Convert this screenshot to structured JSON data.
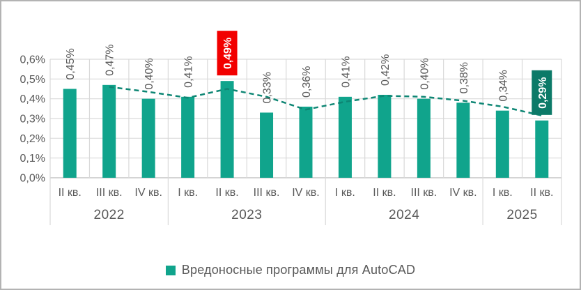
{
  "chart_data": {
    "type": "bar",
    "title": "",
    "legend": {
      "label": "Вредоносные программы для AutoCAD",
      "position": "bottom"
    },
    "y_axis": {
      "min": 0,
      "max": 0.6,
      "tick_step": 0.1,
      "grid": true,
      "ticks": [
        "0,0%",
        "0,1%",
        "0,2%",
        "0,3%",
        "0,4%",
        "0,5%",
        "0,6%"
      ]
    },
    "groups": [
      {
        "year": "2022",
        "quarters": [
          "II кв.",
          "III кв.",
          "IV кв."
        ]
      },
      {
        "year": "2023",
        "quarters": [
          "I кв.",
          "II кв.",
          "III кв.",
          "IV кв."
        ]
      },
      {
        "year": "2024",
        "quarters": [
          "I кв.",
          "II кв.",
          "III кв.",
          "IV кв."
        ]
      },
      {
        "year": "2025",
        "quarters": [
          "I кв.",
          "II кв."
        ]
      }
    ],
    "series": [
      {
        "name": "Вредоносные программы для AutoCAD",
        "values": [
          0.45,
          0.47,
          0.4,
          0.41,
          0.49,
          0.33,
          0.36,
          0.41,
          0.42,
          0.4,
          0.38,
          0.34,
          0.29
        ],
        "labels": [
          "0,45%",
          "0,47%",
          "0,40%",
          "0,41%",
          "0,49%",
          "0,33%",
          "0,36%",
          "0,41%",
          "0,42%",
          "0,40%",
          "0,38%",
          "0,34%",
          "0,29%"
        ]
      }
    ],
    "highlights": [
      {
        "index": 4,
        "label": "0,49%",
        "style": "max",
        "bg": "#F20000",
        "text_color": "#FFFFFF"
      },
      {
        "index": 12,
        "label": "0,29%",
        "style": "latest",
        "bg": "#0C7A68",
        "text_color": "#FFFFFF"
      }
    ],
    "trendline": {
      "style": "dashed",
      "type": "moving-average",
      "period": 2,
      "start_index": 1,
      "values": [
        0.46,
        0.435,
        0.405,
        0.45,
        0.41,
        0.345,
        0.385,
        0.415,
        0.41,
        0.39,
        0.36,
        0.315
      ]
    },
    "colors": {
      "bar": "#10A48C",
      "trendline": "#0E8674",
      "grid": "#D9D9D9",
      "axis": "#C6C6C6",
      "text": "#595959",
      "highlight_text": "#FFFFFF"
    }
  }
}
